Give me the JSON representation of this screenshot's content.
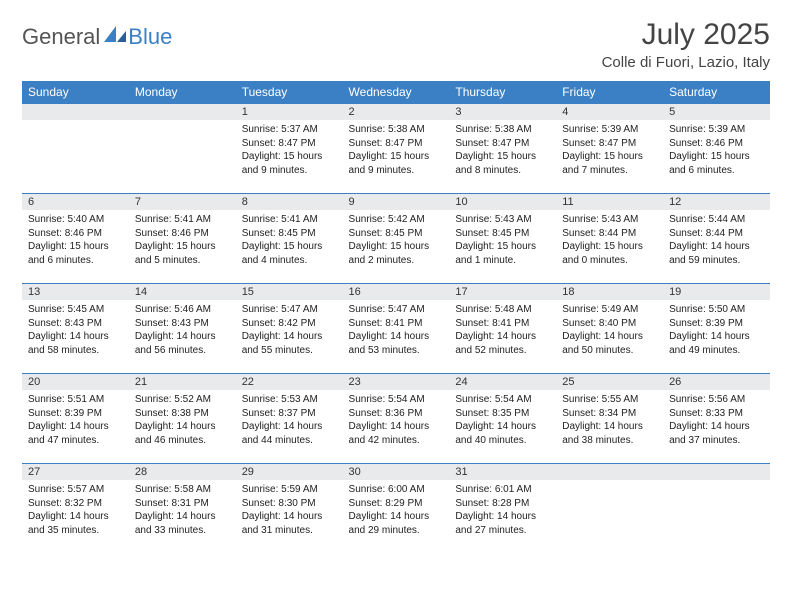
{
  "logo": {
    "general": "General",
    "blue": "Blue"
  },
  "title": "July 2025",
  "location": "Colle di Fuori, Lazio, Italy",
  "colors": {
    "header_bg": "#3b7fc4",
    "header_text": "#ffffff",
    "daynum_bg": "#e9eaec",
    "border": "#3b7fc4",
    "text": "#222222",
    "page_bg": "#ffffff"
  },
  "weekdays": [
    "Sunday",
    "Monday",
    "Tuesday",
    "Wednesday",
    "Thursday",
    "Friday",
    "Saturday"
  ],
  "weeks": [
    [
      null,
      null,
      {
        "n": "1",
        "sunrise": "Sunrise: 5:37 AM",
        "sunset": "Sunset: 8:47 PM",
        "daylight": "Daylight: 15 hours and 9 minutes."
      },
      {
        "n": "2",
        "sunrise": "Sunrise: 5:38 AM",
        "sunset": "Sunset: 8:47 PM",
        "daylight": "Daylight: 15 hours and 9 minutes."
      },
      {
        "n": "3",
        "sunrise": "Sunrise: 5:38 AM",
        "sunset": "Sunset: 8:47 PM",
        "daylight": "Daylight: 15 hours and 8 minutes."
      },
      {
        "n": "4",
        "sunrise": "Sunrise: 5:39 AM",
        "sunset": "Sunset: 8:47 PM",
        "daylight": "Daylight: 15 hours and 7 minutes."
      },
      {
        "n": "5",
        "sunrise": "Sunrise: 5:39 AM",
        "sunset": "Sunset: 8:46 PM",
        "daylight": "Daylight: 15 hours and 6 minutes."
      }
    ],
    [
      {
        "n": "6",
        "sunrise": "Sunrise: 5:40 AM",
        "sunset": "Sunset: 8:46 PM",
        "daylight": "Daylight: 15 hours and 6 minutes."
      },
      {
        "n": "7",
        "sunrise": "Sunrise: 5:41 AM",
        "sunset": "Sunset: 8:46 PM",
        "daylight": "Daylight: 15 hours and 5 minutes."
      },
      {
        "n": "8",
        "sunrise": "Sunrise: 5:41 AM",
        "sunset": "Sunset: 8:45 PM",
        "daylight": "Daylight: 15 hours and 4 minutes."
      },
      {
        "n": "9",
        "sunrise": "Sunrise: 5:42 AM",
        "sunset": "Sunset: 8:45 PM",
        "daylight": "Daylight: 15 hours and 2 minutes."
      },
      {
        "n": "10",
        "sunrise": "Sunrise: 5:43 AM",
        "sunset": "Sunset: 8:45 PM",
        "daylight": "Daylight: 15 hours and 1 minute."
      },
      {
        "n": "11",
        "sunrise": "Sunrise: 5:43 AM",
        "sunset": "Sunset: 8:44 PM",
        "daylight": "Daylight: 15 hours and 0 minutes."
      },
      {
        "n": "12",
        "sunrise": "Sunrise: 5:44 AM",
        "sunset": "Sunset: 8:44 PM",
        "daylight": "Daylight: 14 hours and 59 minutes."
      }
    ],
    [
      {
        "n": "13",
        "sunrise": "Sunrise: 5:45 AM",
        "sunset": "Sunset: 8:43 PM",
        "daylight": "Daylight: 14 hours and 58 minutes."
      },
      {
        "n": "14",
        "sunrise": "Sunrise: 5:46 AM",
        "sunset": "Sunset: 8:43 PM",
        "daylight": "Daylight: 14 hours and 56 minutes."
      },
      {
        "n": "15",
        "sunrise": "Sunrise: 5:47 AM",
        "sunset": "Sunset: 8:42 PM",
        "daylight": "Daylight: 14 hours and 55 minutes."
      },
      {
        "n": "16",
        "sunrise": "Sunrise: 5:47 AM",
        "sunset": "Sunset: 8:41 PM",
        "daylight": "Daylight: 14 hours and 53 minutes."
      },
      {
        "n": "17",
        "sunrise": "Sunrise: 5:48 AM",
        "sunset": "Sunset: 8:41 PM",
        "daylight": "Daylight: 14 hours and 52 minutes."
      },
      {
        "n": "18",
        "sunrise": "Sunrise: 5:49 AM",
        "sunset": "Sunset: 8:40 PM",
        "daylight": "Daylight: 14 hours and 50 minutes."
      },
      {
        "n": "19",
        "sunrise": "Sunrise: 5:50 AM",
        "sunset": "Sunset: 8:39 PM",
        "daylight": "Daylight: 14 hours and 49 minutes."
      }
    ],
    [
      {
        "n": "20",
        "sunrise": "Sunrise: 5:51 AM",
        "sunset": "Sunset: 8:39 PM",
        "daylight": "Daylight: 14 hours and 47 minutes."
      },
      {
        "n": "21",
        "sunrise": "Sunrise: 5:52 AM",
        "sunset": "Sunset: 8:38 PM",
        "daylight": "Daylight: 14 hours and 46 minutes."
      },
      {
        "n": "22",
        "sunrise": "Sunrise: 5:53 AM",
        "sunset": "Sunset: 8:37 PM",
        "daylight": "Daylight: 14 hours and 44 minutes."
      },
      {
        "n": "23",
        "sunrise": "Sunrise: 5:54 AM",
        "sunset": "Sunset: 8:36 PM",
        "daylight": "Daylight: 14 hours and 42 minutes."
      },
      {
        "n": "24",
        "sunrise": "Sunrise: 5:54 AM",
        "sunset": "Sunset: 8:35 PM",
        "daylight": "Daylight: 14 hours and 40 minutes."
      },
      {
        "n": "25",
        "sunrise": "Sunrise: 5:55 AM",
        "sunset": "Sunset: 8:34 PM",
        "daylight": "Daylight: 14 hours and 38 minutes."
      },
      {
        "n": "26",
        "sunrise": "Sunrise: 5:56 AM",
        "sunset": "Sunset: 8:33 PM",
        "daylight": "Daylight: 14 hours and 37 minutes."
      }
    ],
    [
      {
        "n": "27",
        "sunrise": "Sunrise: 5:57 AM",
        "sunset": "Sunset: 8:32 PM",
        "daylight": "Daylight: 14 hours and 35 minutes."
      },
      {
        "n": "28",
        "sunrise": "Sunrise: 5:58 AM",
        "sunset": "Sunset: 8:31 PM",
        "daylight": "Daylight: 14 hours and 33 minutes."
      },
      {
        "n": "29",
        "sunrise": "Sunrise: 5:59 AM",
        "sunset": "Sunset: 8:30 PM",
        "daylight": "Daylight: 14 hours and 31 minutes."
      },
      {
        "n": "30",
        "sunrise": "Sunrise: 6:00 AM",
        "sunset": "Sunset: 8:29 PM",
        "daylight": "Daylight: 14 hours and 29 minutes."
      },
      {
        "n": "31",
        "sunrise": "Sunrise: 6:01 AM",
        "sunset": "Sunset: 8:28 PM",
        "daylight": "Daylight: 14 hours and 27 minutes."
      },
      null,
      null
    ]
  ]
}
